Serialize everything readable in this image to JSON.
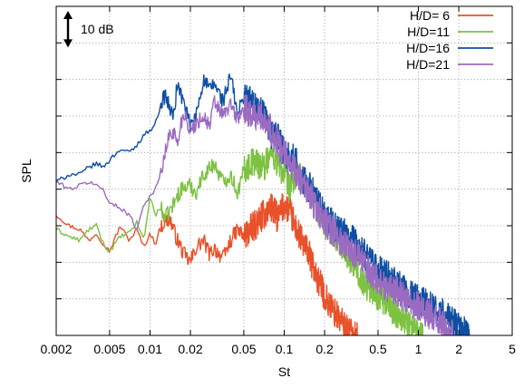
{
  "chart_data": {
    "type": "line",
    "xlabel": "St",
    "ylabel": "SPL",
    "xscale": "log",
    "xlim": [
      0.002,
      5
    ],
    "ylim": [
      0,
      90
    ],
    "y_ticks_labeled": false,
    "y_tick_values": [
      10,
      20,
      30,
      40,
      50,
      60,
      70,
      80
    ],
    "x_ticks": [
      {
        "v": 0.002,
        "label": "0.002"
      },
      {
        "v": 0.005,
        "label": "0.005"
      },
      {
        "v": 0.01,
        "label": "0.01"
      },
      {
        "v": 0.02,
        "label": "0.02"
      },
      {
        "v": 0.05,
        "label": "0.05"
      },
      {
        "v": 0.1,
        "label": "0.1"
      },
      {
        "v": 0.2,
        "label": "0.2"
      },
      {
        "v": 0.5,
        "label": "0.5"
      },
      {
        "v": 1,
        "label": "1"
      },
      {
        "v": 2,
        "label": "2"
      },
      {
        "v": 5,
        "label": "5"
      }
    ],
    "grid": true,
    "grid_style": "dotted",
    "legend_position": "top-right",
    "scale_annotation": {
      "label": "10 dB",
      "span_db": 10
    },
    "series": [
      {
        "name": "H/D= 6",
        "color": "#e8512a",
        "x": [
          0.002,
          0.0025,
          0.003,
          0.0035,
          0.004,
          0.0045,
          0.005,
          0.006,
          0.007,
          0.008,
          0.009,
          0.01,
          0.011,
          0.012,
          0.014,
          0.016,
          0.018,
          0.02,
          0.022,
          0.025,
          0.028,
          0.03,
          0.035,
          0.04,
          0.045,
          0.05,
          0.06,
          0.07,
          0.08,
          0.09,
          0.1,
          0.11,
          0.12,
          0.13,
          0.15,
          0.17,
          0.2,
          0.22,
          0.25,
          0.28,
          0.3,
          0.32,
          0.35
        ],
        "y": [
          33,
          30,
          29,
          26,
          28,
          25,
          23,
          30,
          26,
          29,
          24,
          28,
          25,
          30,
          32,
          26,
          22,
          20,
          24,
          26,
          22,
          24,
          21,
          26,
          29,
          27,
          30,
          33,
          35,
          32,
          36,
          34,
          30,
          27,
          23,
          17,
          11,
          8,
          5,
          3,
          1,
          0,
          0
        ]
      },
      {
        "name": "H/D=11",
        "color": "#7dc243",
        "x": [
          0.002,
          0.0025,
          0.003,
          0.0035,
          0.004,
          0.0045,
          0.005,
          0.006,
          0.007,
          0.008,
          0.009,
          0.01,
          0.011,
          0.012,
          0.013,
          0.015,
          0.017,
          0.02,
          0.022,
          0.025,
          0.03,
          0.035,
          0.04,
          0.045,
          0.05,
          0.06,
          0.07,
          0.08,
          0.09,
          0.1,
          0.11,
          0.12,
          0.14,
          0.16,
          0.18,
          0.2,
          0.25,
          0.3,
          0.35,
          0.4,
          0.5,
          0.6,
          0.7,
          0.8,
          0.9,
          1.0,
          1.1
        ],
        "y": [
          29,
          27,
          26,
          29,
          30,
          25,
          23,
          27,
          28,
          31,
          26,
          38,
          33,
          35,
          32,
          36,
          40,
          41,
          39,
          44,
          47,
          42,
          44,
          39,
          45,
          48,
          46,
          50,
          47,
          44,
          40,
          44,
          42,
          39,
          34,
          30,
          27,
          22,
          18,
          14,
          11,
          8,
          6,
          4,
          2,
          1,
          0
        ]
      },
      {
        "name": "H/D=16",
        "color": "#0f4fa3",
        "x": [
          0.002,
          0.0025,
          0.003,
          0.0035,
          0.004,
          0.0045,
          0.005,
          0.006,
          0.007,
          0.008,
          0.009,
          0.01,
          0.011,
          0.012,
          0.013,
          0.014,
          0.015,
          0.016,
          0.018,
          0.02,
          0.022,
          0.025,
          0.028,
          0.03,
          0.035,
          0.04,
          0.045,
          0.05,
          0.06,
          0.07,
          0.08,
          0.09,
          0.1,
          0.12,
          0.14,
          0.16,
          0.18,
          0.2,
          0.25,
          0.3,
          0.35,
          0.4,
          0.5,
          0.6,
          0.7,
          0.8,
          1.0,
          1.2,
          1.5,
          1.8,
          2.0,
          2.2,
          2.4
        ],
        "y": [
          42,
          44,
          44,
          46,
          47,
          46,
          48,
          51,
          50,
          52,
          55,
          56,
          58,
          63,
          66,
          62,
          60,
          69,
          63,
          57,
          60,
          70,
          67,
          69,
          64,
          71,
          60,
          66,
          63,
          60,
          55,
          54,
          50,
          48,
          42,
          40,
          36,
          33,
          29,
          27,
          25,
          22,
          18,
          16,
          14,
          12,
          10,
          8,
          6,
          4,
          2,
          1,
          0
        ]
      },
      {
        "name": "H/D=21",
        "color": "#9b6bc2",
        "x": [
          0.002,
          0.0025,
          0.003,
          0.0035,
          0.004,
          0.0045,
          0.005,
          0.006,
          0.007,
          0.008,
          0.009,
          0.01,
          0.011,
          0.012,
          0.013,
          0.014,
          0.015,
          0.016,
          0.017,
          0.018,
          0.02,
          0.022,
          0.025,
          0.028,
          0.03,
          0.035,
          0.04,
          0.045,
          0.05,
          0.06,
          0.07,
          0.08,
          0.09,
          0.1,
          0.12,
          0.14,
          0.16,
          0.18,
          0.2,
          0.25,
          0.3,
          0.35,
          0.4,
          0.5,
          0.6,
          0.7,
          0.8,
          1.0,
          1.2,
          1.4,
          1.6,
          1.8
        ],
        "y": [
          42,
          40,
          41,
          42,
          41,
          40,
          36,
          35,
          33,
          29,
          36,
          38,
          40,
          44,
          50,
          55,
          56,
          52,
          58,
          61,
          56,
          58,
          60,
          57,
          64,
          60,
          63,
          59,
          62,
          60,
          60,
          56,
          52,
          50,
          45,
          41,
          37,
          34,
          31,
          27,
          24,
          22,
          19,
          15,
          13,
          12,
          10,
          8,
          6,
          4,
          2,
          0
        ]
      }
    ]
  }
}
